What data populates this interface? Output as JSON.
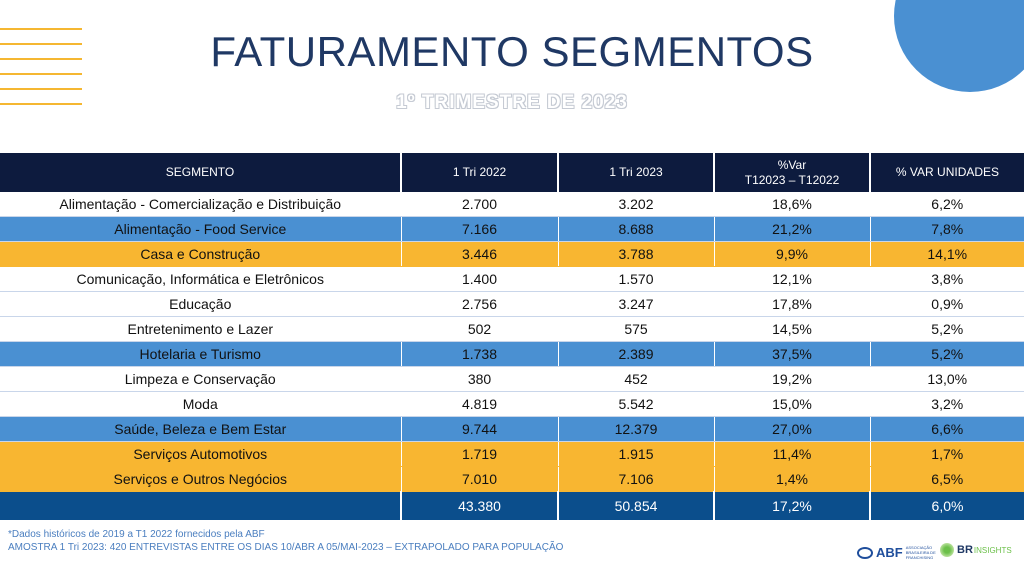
{
  "title": "FATURAMENTO SEGMENTOS",
  "subtitle": "1º TRIMESTRE DE 2023",
  "table": {
    "headers": [
      "SEGMENTO",
      "1 Tri 2022",
      "1 Tri 2023",
      "%Var",
      "T12023 – T12022",
      "% VAR UNIDADES"
    ],
    "rows": [
      {
        "style": "white",
        "cells": [
          "Alimentação - Comercialização e Distribuição",
          "2.700",
          "3.202",
          "18,6%",
          "6,2%"
        ]
      },
      {
        "style": "blue",
        "cells": [
          "Alimentação - Food Service",
          "7.166",
          "8.688",
          "21,2%",
          "7,8%"
        ]
      },
      {
        "style": "yellow",
        "cells": [
          "Casa e Construção",
          "3.446",
          "3.788",
          "9,9%",
          "14,1%"
        ]
      },
      {
        "style": "white",
        "cells": [
          "Comunicação, Informática e Eletrônicos",
          "1.400",
          "1.570",
          "12,1%",
          "3,8%"
        ]
      },
      {
        "style": "white",
        "cells": [
          "Educação",
          "2.756",
          "3.247",
          "17,8%",
          "0,9%"
        ]
      },
      {
        "style": "white",
        "cells": [
          "Entretenimento e Lazer",
          "502",
          "575",
          "14,5%",
          "5,2%"
        ]
      },
      {
        "style": "blue",
        "cells": [
          "Hotelaria e Turismo",
          "1.738",
          "2.389",
          "37,5%",
          "5,2%"
        ]
      },
      {
        "style": "white",
        "cells": [
          "Limpeza e  Conservação",
          "380",
          "452",
          "19,2%",
          "13,0%"
        ]
      },
      {
        "style": "white",
        "cells": [
          "Moda",
          "4.819",
          "5.542",
          "15,0%",
          "3,2%"
        ]
      },
      {
        "style": "blue",
        "cells": [
          "Saúde, Beleza e Bem Estar",
          "9.744",
          "12.379",
          "27,0%",
          "6,6%"
        ]
      },
      {
        "style": "yellow",
        "cells": [
          "Serviços Automotivos",
          "1.719",
          "1.915",
          "11,4%",
          "1,7%"
        ]
      },
      {
        "style": "yellow",
        "cells": [
          "Serviços e Outros Negócios",
          "7.010",
          "7.106",
          "1,4%",
          "6,5%"
        ]
      }
    ],
    "total": [
      "",
      "43.380",
      "50.854",
      "17,2%",
      "6,0%"
    ]
  },
  "footnotes": [
    "*Dados históricos de 2019 a T1 2022 fornecidos pela ABF",
    "AMOSTRA 1 Tri 2023: 420 ENTREVISTAS ENTRE OS DIAS 10/ABR A 05/MAI-2023 – EXTRAPOLADO PARA POPULAÇÃO"
  ],
  "logos": {
    "abf": "ABF",
    "abf_sub": "ASSOCIAÇÃO BRASILEIRA DE FRANCHISING",
    "br": "BR",
    "insights": "INSIGHTS"
  },
  "colors": {
    "header": "#0d1b3e",
    "blue": "#4a90d2",
    "yellow": "#f8b631",
    "total": "#0b4e8c",
    "title": "#1f3864"
  }
}
